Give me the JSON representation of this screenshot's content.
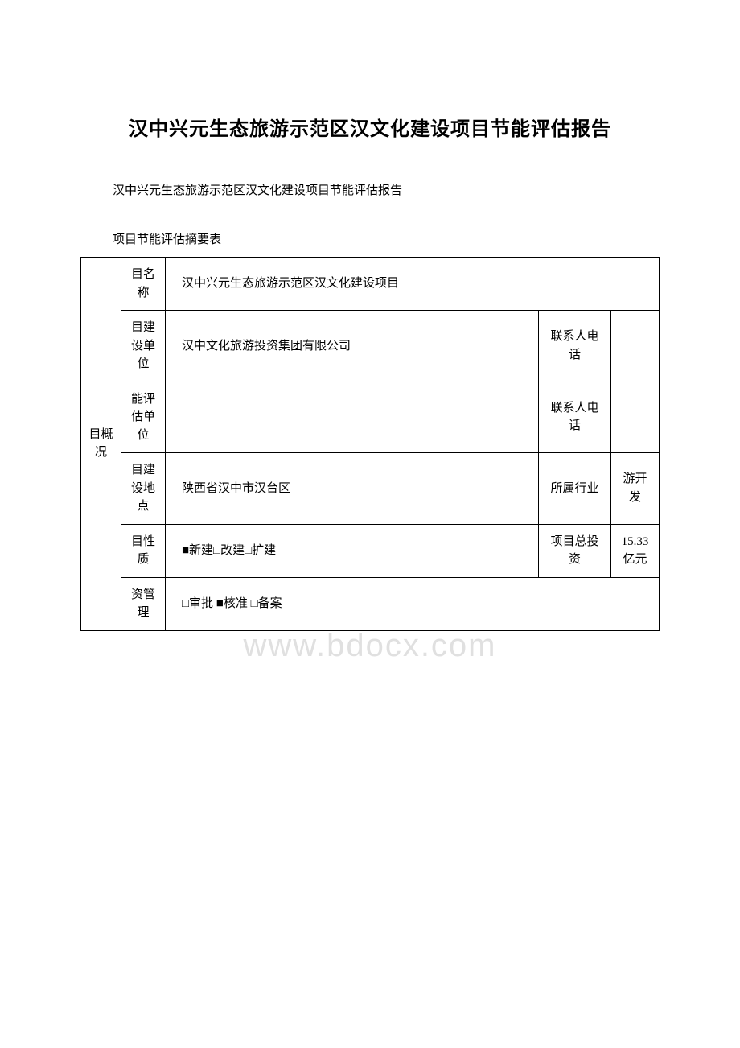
{
  "document": {
    "title": "汉中兴元生态旅游示范区汉文化建设项目节能评估报告",
    "subtitle": "汉中兴元生态旅游示范区汉文化建设项目节能评估报告",
    "table_caption": "项目节能评估摘要表",
    "watermark": "www.bdocx.com"
  },
  "overview": {
    "section_label": "目概况",
    "rows": [
      {
        "label": "目名称",
        "value": "汉中兴元生态旅游示范区汉文化建设项目",
        "sublabel": "",
        "subvalue": ""
      },
      {
        "label": "目建设单位",
        "value": "汉中文化旅游投资集团有限公司",
        "sublabel": "联系人电话",
        "subvalue": ""
      },
      {
        "label": "能评估单位",
        "value": "",
        "sublabel": "联系人电话",
        "subvalue": ""
      },
      {
        "label": "目建设地点",
        "value": "陕西省汉中市汉台区",
        "sublabel": "所属行业",
        "subvalue": "游开发"
      },
      {
        "label": "目性质",
        "value": "■新建□改建□扩建",
        "sublabel": "项目总投资",
        "subvalue": "15.33 亿元"
      },
      {
        "label": "资管理",
        "value": "□审批 ■核准 □备案",
        "sublabel": "",
        "subvalue": ""
      }
    ]
  }
}
